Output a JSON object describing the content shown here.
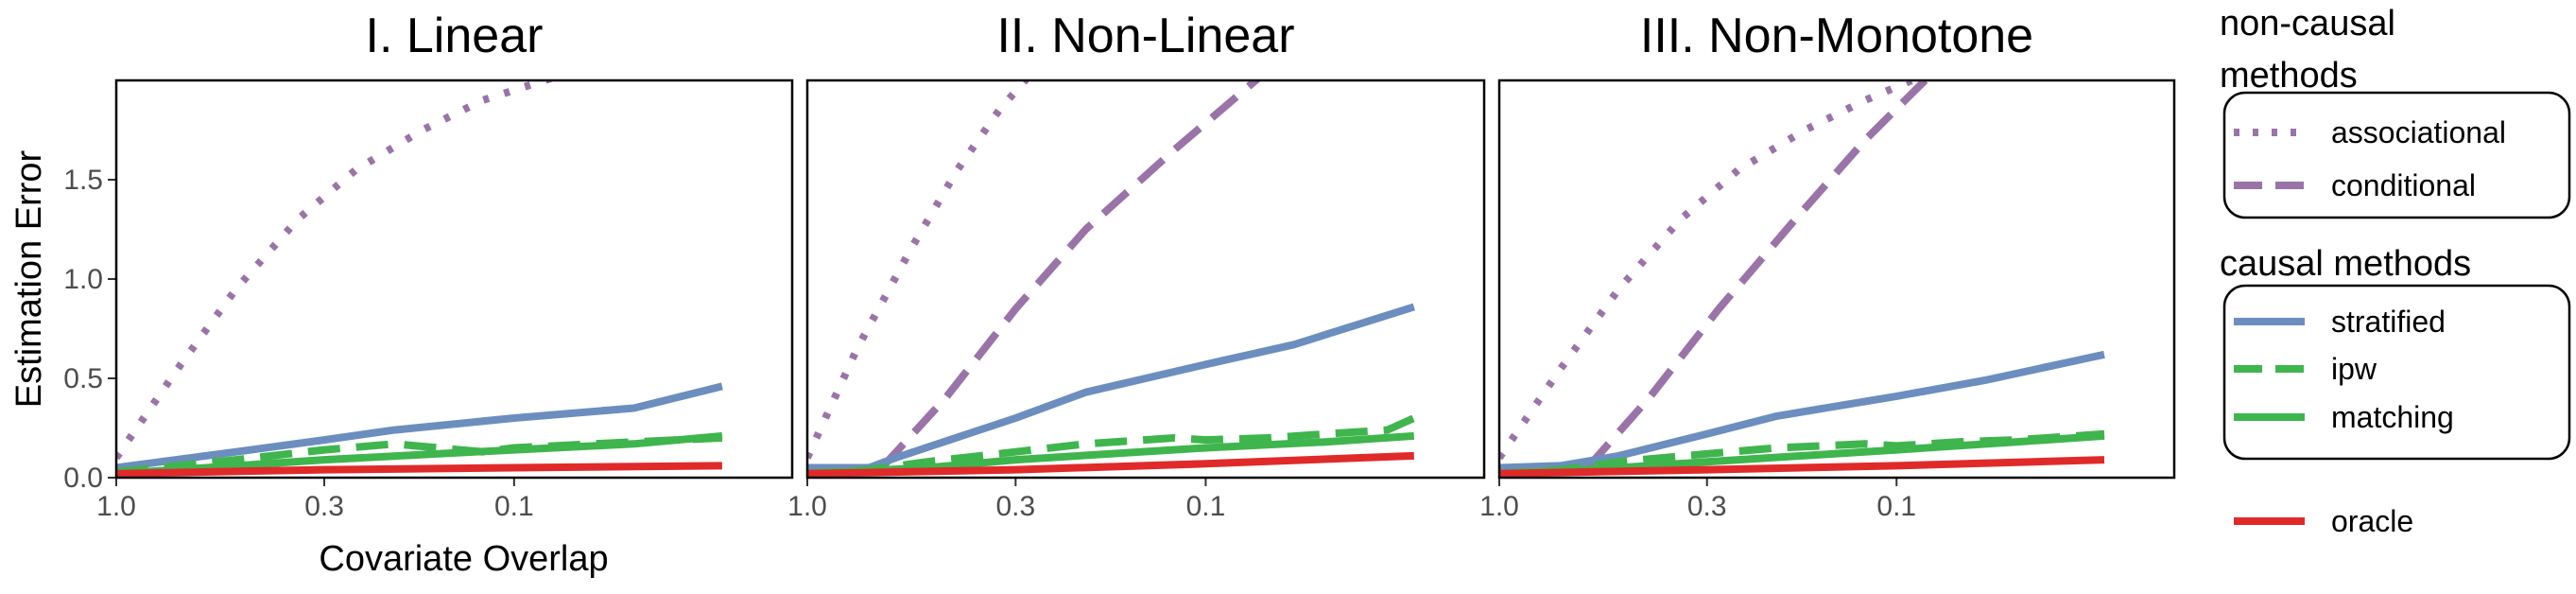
{
  "chart_data": {
    "type": "line",
    "ylabel": "Estimation Error",
    "xlabel": "Covariate Overlap",
    "x_scale": "log (reversed)",
    "xlim": [
      1.0,
      0.02
    ],
    "ylim": [
      0,
      2.0
    ],
    "x_ticks": [
      1.0,
      0.3,
      0.1
    ],
    "x_tick_labels": [
      "1.0",
      "0.3",
      "0.1"
    ],
    "y_ticks": [
      0.0,
      0.5,
      1.0,
      1.5
    ],
    "y_tick_labels": [
      "0.0",
      "0.5",
      "1.0",
      "1.5"
    ],
    "grid": false,
    "legend_position": "right",
    "legend_groups": [
      {
        "title": "non-causal methods",
        "title_lines": [
          "non-causal",
          "methods"
        ],
        "entries": [
          "associational",
          "conditional"
        ]
      },
      {
        "title": "causal methods",
        "title_lines": [
          "causal methods"
        ],
        "entries": [
          "stratified",
          "ipw",
          "matching"
        ]
      },
      {
        "title": "",
        "title_lines": [],
        "entries": [
          "oracle"
        ]
      }
    ],
    "series_styles": {
      "associational": {
        "color": "#9a73a8",
        "dash": "dotted"
      },
      "conditional": {
        "color": "#9a73a8",
        "dash": "dashed"
      },
      "stratified": {
        "color": "#6b8ebf",
        "dash": "solid"
      },
      "ipw": {
        "color": "#3fb54d",
        "dash": "dashed"
      },
      "matching": {
        "color": "#3fb54d",
        "dash": "solid"
      },
      "oracle": {
        "color": "#e02a2a",
        "dash": "solid"
      }
    },
    "panels": [
      {
        "title": "I. Linear",
        "series": [
          {
            "name": "associational",
            "x": [
              1.0,
              0.7,
              0.5,
              0.35,
              0.25,
              0.17,
              0.12,
              0.07
            ],
            "y": [
              0.1,
              0.55,
              0.95,
              1.3,
              1.55,
              1.75,
              1.9,
              2.05
            ]
          },
          {
            "name": "stratified",
            "x": [
              1.0,
              0.5,
              0.3,
              0.2,
              0.1,
              0.05,
              0.03
            ],
            "y": [
              0.05,
              0.13,
              0.19,
              0.24,
              0.3,
              0.35,
              0.46
            ]
          },
          {
            "name": "ipw",
            "x": [
              1.0,
              0.7,
              0.5,
              0.3,
              0.2,
              0.12,
              0.1,
              0.05,
              0.03
            ],
            "y": [
              0.03,
              0.06,
              0.09,
              0.14,
              0.17,
              0.13,
              0.15,
              0.18,
              0.2
            ]
          },
          {
            "name": "matching",
            "x": [
              1.0,
              0.5,
              0.3,
              0.1,
              0.05,
              0.03
            ],
            "y": [
              0.02,
              0.06,
              0.09,
              0.14,
              0.17,
              0.21
            ]
          },
          {
            "name": "oracle",
            "x": [
              1.0,
              0.3,
              0.1,
              0.03
            ],
            "y": [
              0.02,
              0.04,
              0.05,
              0.06
            ]
          }
        ]
      },
      {
        "title": "II. Non-Linear",
        "series": [
          {
            "name": "associational",
            "x": [
              1.0,
              0.75,
              0.55,
              0.42,
              0.33,
              0.27
            ],
            "y": [
              0.1,
              0.65,
              1.15,
              1.55,
              1.85,
              2.05
            ]
          },
          {
            "name": "conditional",
            "x": [
              0.65,
              0.45,
              0.3,
              0.2,
              0.12,
              0.07
            ],
            "y": [
              0.05,
              0.4,
              0.85,
              1.25,
              1.65,
              2.05
            ]
          },
          {
            "name": "stratified",
            "x": [
              1.0,
              0.7,
              0.6,
              0.3,
              0.2,
              0.1,
              0.06,
              0.03
            ],
            "y": [
              0.05,
              0.05,
              0.1,
              0.3,
              0.43,
              0.57,
              0.67,
              0.86
            ]
          },
          {
            "name": "ipw",
            "x": [
              1.0,
              0.7,
              0.5,
              0.3,
              0.2,
              0.12,
              0.1,
              0.07,
              0.05,
              0.035,
              0.03
            ],
            "y": [
              0.02,
              0.04,
              0.08,
              0.13,
              0.17,
              0.2,
              0.19,
              0.2,
              0.22,
              0.24,
              0.3
            ]
          },
          {
            "name": "matching",
            "x": [
              1.0,
              0.5,
              0.3,
              0.1,
              0.05,
              0.03
            ],
            "y": [
              0.02,
              0.05,
              0.09,
              0.15,
              0.18,
              0.21
            ]
          },
          {
            "name": "oracle",
            "x": [
              1.0,
              0.3,
              0.1,
              0.03
            ],
            "y": [
              0.02,
              0.04,
              0.07,
              0.11
            ]
          }
        ]
      },
      {
        "title": "III. Non-Monotone",
        "series": [
          {
            "name": "associational",
            "x": [
              1.0,
              0.7,
              0.5,
              0.35,
              0.25,
              0.17,
              0.12,
              0.08
            ],
            "y": [
              0.1,
              0.55,
              0.95,
              1.3,
              1.55,
              1.75,
              1.9,
              2.05
            ]
          },
          {
            "name": "conditional",
            "x": [
              0.6,
              0.42,
              0.28,
              0.18,
              0.12,
              0.08
            ],
            "y": [
              0.05,
              0.4,
              0.85,
              1.3,
              1.7,
              2.05
            ]
          },
          {
            "name": "stratified",
            "x": [
              1.0,
              0.7,
              0.5,
              0.3,
              0.2,
              0.1,
              0.06,
              0.03
            ],
            "y": [
              0.05,
              0.06,
              0.11,
              0.22,
              0.31,
              0.41,
              0.49,
              0.62
            ]
          },
          {
            "name": "ipw",
            "x": [
              1.0,
              0.7,
              0.5,
              0.3,
              0.2,
              0.12,
              0.1,
              0.07,
              0.05,
              0.03
            ],
            "y": [
              0.02,
              0.04,
              0.08,
              0.12,
              0.15,
              0.17,
              0.16,
              0.18,
              0.19,
              0.22
            ]
          },
          {
            "name": "matching",
            "x": [
              1.0,
              0.5,
              0.3,
              0.1,
              0.05,
              0.03
            ],
            "y": [
              0.02,
              0.05,
              0.08,
              0.14,
              0.18,
              0.21
            ]
          },
          {
            "name": "oracle",
            "x": [
              1.0,
              0.3,
              0.1,
              0.03
            ],
            "y": [
              0.02,
              0.04,
              0.06,
              0.09
            ]
          }
        ]
      }
    ]
  }
}
